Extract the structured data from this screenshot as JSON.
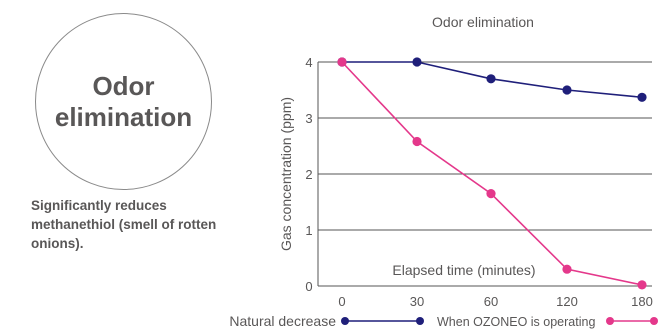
{
  "badge": {
    "title": "Odor elimination"
  },
  "description": "Significantly reduces methanethiol (smell of rotten onions).",
  "colors": {
    "navy": "#1f1f7a",
    "magenta": "#e4388b",
    "grid": "#555555",
    "text": "#595757"
  },
  "chart_data": {
    "type": "line",
    "title": "Odor elimination",
    "xlabel": "Elapsed time (minutes)",
    "ylabel": "Gas concentration (ppm)",
    "categories": [
      "0",
      "30",
      "60",
      "120",
      "180"
    ],
    "yticks": [
      "0",
      "1",
      "2",
      "3",
      "4"
    ],
    "ylim": [
      0,
      4
    ],
    "grid": true,
    "legend_position": "bottom",
    "series": [
      {
        "name": "Natural decrease",
        "color": "#1f1f7a",
        "values": [
          4.0,
          4.0,
          3.7,
          3.5,
          3.37
        ]
      },
      {
        "name": "When OZONEO is operating",
        "color": "#e4388b",
        "values": [
          4.0,
          2.58,
          1.65,
          0.3,
          0.02
        ]
      }
    ]
  }
}
